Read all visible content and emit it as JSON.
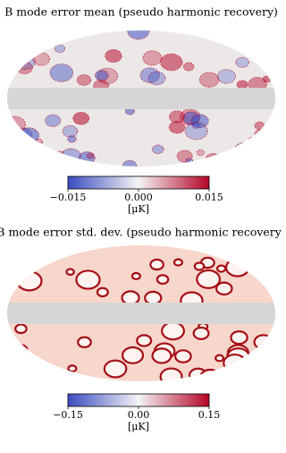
{
  "chart_data": [
    {
      "type": "map",
      "title": "B mode error mean (pseudo harmonic recovery)",
      "colorbar_label": "[μK]",
      "clim": [
        -0.015,
        0.015
      ],
      "cticks": [
        {
          "value": -0.015,
          "label": "−0.015"
        },
        {
          "value": 0,
          "label": "0.000"
        },
        {
          "value": 0.015,
          "label": "0.015"
        }
      ],
      "colormap": [
        "#3b4cc0",
        "#f4f4f4",
        "#b40426"
      ]
    },
    {
      "type": "map",
      "title": "B mode error std. dev. (pseudo harmonic recovery)",
      "colorbar_label": "[μK]",
      "clim": [
        -0.15,
        0.15
      ],
      "cticks": [
        {
          "value": -0.15,
          "label": "−0.15"
        },
        {
          "value": 0,
          "label": "0.00"
        },
        {
          "value": 0.15,
          "label": "0.15"
        }
      ],
      "colormap": [
        "#3b4cc0",
        "#f4f4f4",
        "#b40426"
      ]
    }
  ]
}
